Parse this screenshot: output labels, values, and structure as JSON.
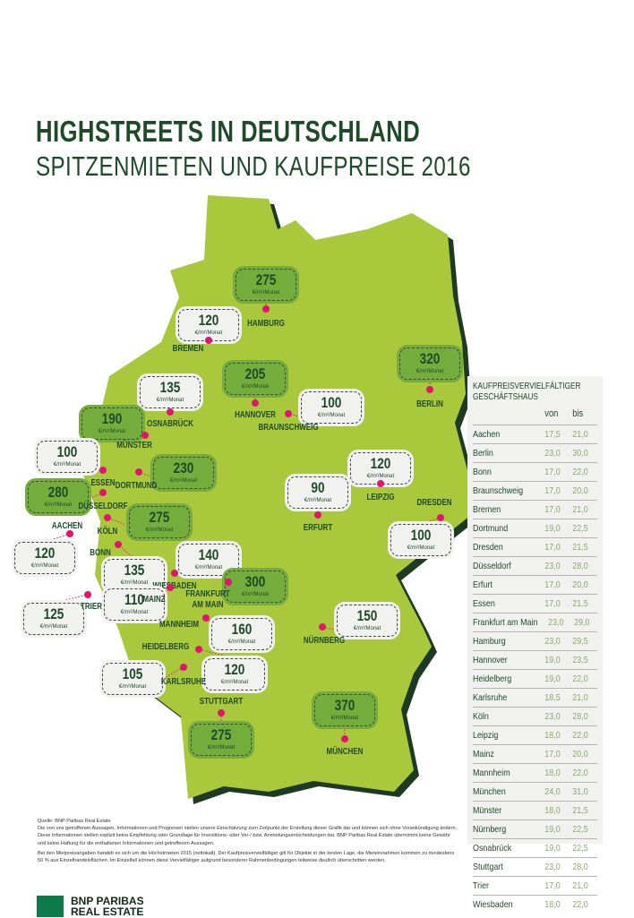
{
  "title": "HIGHSTREETS IN DEUTSCHLAND",
  "subtitle": "SPITZENMIETEN UND KAUFPREISE 2016",
  "colors": {
    "map": "#a9c83c",
    "shadow": "#1e3a22",
    "high_badge": "#74ad3c",
    "low_badge": "#f1f1ef",
    "marker": "#e0166e",
    "text": "#1e4a2a"
  },
  "unit": "€/m²/Monat",
  "cities": [
    {
      "name": "HAMBURG",
      "rent": "275",
      "badge": "green"
    },
    {
      "name": "BREMEN",
      "rent": "120",
      "badge": "white"
    },
    {
      "name": "OSNABRÜCK",
      "rent": "135",
      "badge": "white"
    },
    {
      "name": "HANNOVER",
      "rent": "205",
      "badge": "green"
    },
    {
      "name": "BERLIN",
      "rent": "320",
      "badge": "green"
    },
    {
      "name": "BRAUNSCHWEIG",
      "rent": "100",
      "badge": "white"
    },
    {
      "name": "MÜNSTER",
      "rent": "190",
      "badge": "green"
    },
    {
      "name": "ESSEN",
      "rent": "100",
      "badge": "white"
    },
    {
      "name": "DORTMUND",
      "rent": "230",
      "badge": "green"
    },
    {
      "name": "LEIPZIG",
      "rent": "120",
      "badge": "white"
    },
    {
      "name": "ERFURT",
      "rent": "90",
      "badge": "white"
    },
    {
      "name": "DÜSSELDORF",
      "rent": "280",
      "badge": "green"
    },
    {
      "name": "DRESDEN",
      "rent": "100",
      "badge": "white"
    },
    {
      "name": "KÖLN",
      "rent": "275",
      "badge": "green"
    },
    {
      "name": "AACHEN",
      "rent": "120",
      "badge": "white"
    },
    {
      "name": "BONN",
      "rent": "135",
      "badge": "white"
    },
    {
      "name": "WIESBADEN",
      "rent": "140",
      "badge": "white"
    },
    {
      "name": "FRANKFURT AM MAIN",
      "rent": "300",
      "badge": "green"
    },
    {
      "name": "MAINZ",
      "rent": "110",
      "badge": "white"
    },
    {
      "name": "TRIER",
      "rent": "125",
      "badge": "white"
    },
    {
      "name": "MANNHEIM",
      "rent": "160",
      "badge": "white"
    },
    {
      "name": "NÜRNBERG",
      "rent": "150",
      "badge": "white"
    },
    {
      "name": "HEIDELBERG",
      "rent": "120",
      "badge": "white"
    },
    {
      "name": "KARLSRUHE",
      "rent": "105",
      "badge": "white"
    },
    {
      "name": "STUTTGART",
      "rent": "275",
      "badge": "green"
    },
    {
      "name": "MÜNCHEN",
      "rent": "370",
      "badge": "green"
    }
  ],
  "table": {
    "title_line1": "KAUFPREISVERVIELFÄLTIGER",
    "title_line2": "GESCHÄFTSHAUS",
    "col_from": "von",
    "col_to": "bis",
    "rows": [
      [
        "Aachen",
        "17,5",
        "21,0"
      ],
      [
        "Berlin",
        "23,0",
        "30,0"
      ],
      [
        "Bonn",
        "17,0",
        "22,0"
      ],
      [
        "Braunschweig",
        "17,0",
        "20,0"
      ],
      [
        "Bremen",
        "17,0",
        "21,0"
      ],
      [
        "Dortmund",
        "19,0",
        "22,5"
      ],
      [
        "Dresden",
        "17,0",
        "21,5"
      ],
      [
        "Düsseldorf",
        "23,0",
        "28,0"
      ],
      [
        "Erfurt",
        "17,0",
        "20,0"
      ],
      [
        "Essen",
        "17,0",
        "21,5"
      ],
      [
        "Frankfurt am Main",
        "23,0",
        "29,0"
      ],
      [
        "Hamburg",
        "23,0",
        "29,5"
      ],
      [
        "Hannover",
        "19,0",
        "23,5"
      ],
      [
        "Heidelberg",
        "19,0",
        "22,0"
      ],
      [
        "Karlsruhe",
        "18,5",
        "21,0"
      ],
      [
        "Köln",
        "23,0",
        "28,0"
      ],
      [
        "Leipzig",
        "18,0",
        "22,0"
      ],
      [
        "Mainz",
        "17,0",
        "20,0"
      ],
      [
        "Mannheim",
        "18,0",
        "22,0"
      ],
      [
        "München",
        "24,0",
        "31,0"
      ],
      [
        "Münster",
        "18,0",
        "21,5"
      ],
      [
        "Nürnberg",
        "19,0",
        "22,5"
      ],
      [
        "Osnabrück",
        "19,0",
        "22,5"
      ],
      [
        "Stuttgart",
        "23,0",
        "28,0"
      ],
      [
        "Trier",
        "17,0",
        "21,0"
      ],
      [
        "Wiesbaden",
        "18,0",
        "22,0"
      ]
    ]
  },
  "footer": {
    "source": "Quelle: BNP Paribas Real Estate",
    "disclaimer": "Die von uns getroffenen Aussagen, Informationen und Prognosen stellen unsere Einschätzung zum Zeitpunkt der Erstellung dieser Grafik dar und können sich ohne Vorankündigung ändern. Diese Informationen stellen explizit keine Empfehlung oder Grundlage für Investitions- oder Ver-/ bzw. Anmietungsentscheidungen dar. BNP Paribas Real Estate übernimmt keine Gewähr und keine Haftung für die enthaltenen Informationen und getroffenen Aussagen.",
    "note": "Bei den Mietpreisangaben handelt es sich um die Höchstmieten 2015 (nettokalt). Der Kaufpreisvervielfältiger gilt für Objekte in der besten Lage, die Mieteinnahmen kommen zu mindestens 50 % aus Einzelhandelsflächen. Im Einzelfall können diese Vervielfältiger aufgrund besonderer Rahmenbedingungen teilweise deutlich überschritten werden."
  },
  "logo": {
    "line1": "BNP PARIBAS",
    "line2": "REAL ESTATE"
  }
}
